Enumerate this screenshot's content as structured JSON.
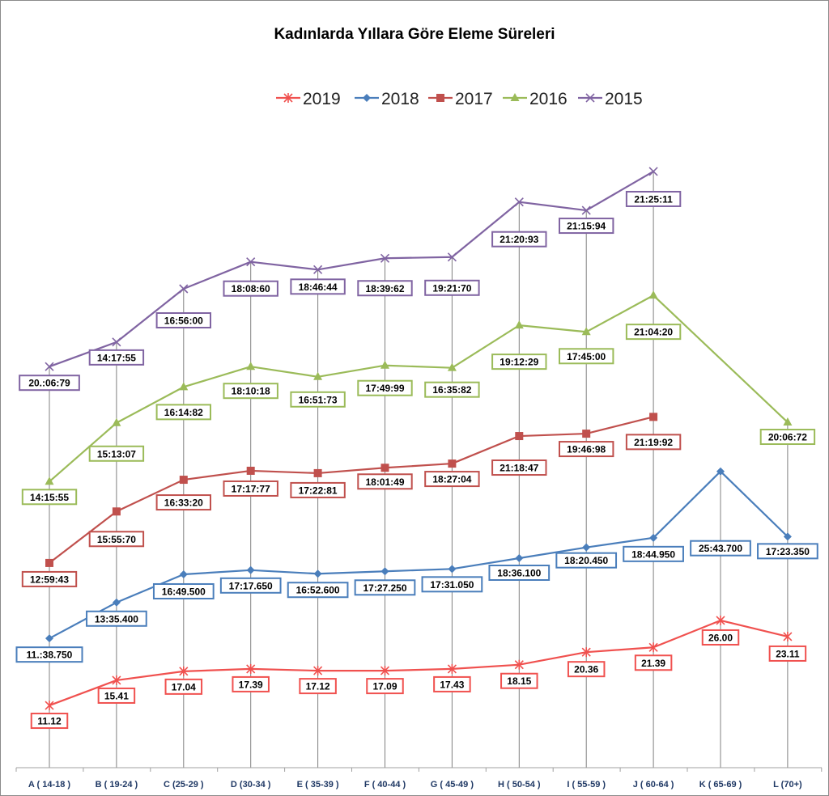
{
  "chart_data": {
    "type": "line",
    "title": "Kadınlarda Yıllara Göre Eleme Süreleri",
    "xlabel": "",
    "ylabel": "",
    "ylim": [
      0,
      100
    ],
    "grid": false,
    "legend_position": "top-center",
    "categories": [
      "A ( 14-18 )",
      "B ( 19-24 )",
      "C (25-29 )",
      "D (30-34 )",
      "E ( 35-39 )",
      "F ( 40-44 )",
      "G ( 45-49 )",
      "H ( 50-54 )",
      "I ( 55-59 )",
      "J ( 60-64 )",
      "K ( 65-69 )",
      "L (70+)"
    ],
    "series": [
      {
        "name": "2019",
        "color": "#f0514f",
        "marker": "asterisk",
        "values": [
          10.4,
          14.6,
          16.1,
          16.5,
          16.2,
          16.2,
          16.5,
          17.2,
          19.3,
          20.1,
          24.6,
          21.9
        ],
        "labels": [
          "11.12",
          "15.41",
          "17.04",
          "17.39",
          "17.12",
          "17.09",
          "17.43",
          "18.15",
          "20.36",
          "21.39",
          "26.00",
          "23.11"
        ]
      },
      {
        "name": "2018",
        "color": "#4a7ebb",
        "marker": "diamond",
        "values": [
          21.6,
          27.6,
          32.3,
          33.0,
          32.4,
          32.8,
          33.2,
          35.0,
          36.8,
          38.4,
          49.5,
          38.6
        ],
        "labels": [
          "11.:38.750",
          "13:35.400",
          "16:49.500",
          "17:17.650",
          "16:52.600",
          "17:27.250",
          "17:31.050",
          "18:36.100",
          "18:20.450",
          "18:44.950",
          "25:43.700",
          "17:23.350"
        ]
      },
      {
        "name": "2017",
        "color": "#c0504d",
        "marker": "square",
        "values": [
          34.2,
          42.8,
          48.1,
          49.6,
          49.2,
          50.1,
          50.8,
          55.4,
          55.8,
          58.6,
          null,
          null
        ],
        "labels": [
          "12:59:43",
          "15:55:70",
          "16:33:20",
          "17:17:77",
          "17:22:81",
          "18:01:49",
          "18:27:04",
          "21:18:47",
          "19:46:98",
          "21:19:92",
          null,
          null
        ]
      },
      {
        "name": "2016",
        "color": "#9bbb59",
        "marker": "triangle",
        "values": [
          47.8,
          57.6,
          63.6,
          67.0,
          65.3,
          67.2,
          66.8,
          73.9,
          72.8,
          78.9,
          null,
          57.7
        ],
        "labels": [
          "14:15:55",
          "15:13:07",
          "16:14:82",
          "18:10:18",
          "16:51:73",
          "17:49:99",
          "16:35:82",
          "19:12:29",
          "17:45:00",
          "21:04:20",
          null,
          "20:06:72"
        ]
      },
      {
        "name": "2015",
        "color": "#8064a2",
        "marker": "x",
        "values": [
          67.0,
          71.1,
          80.0,
          84.5,
          83.2,
          85.1,
          85.3,
          94.5,
          93.1,
          99.6,
          null,
          null
        ],
        "labels": [
          "20.:06:79",
          "14:17:55",
          "16:56:00",
          "18:08:60",
          "18:46:44",
          "18:39:62",
          "19:21:70",
          "21:20:93",
          "21:15:94",
          "21:25:11",
          null,
          null
        ]
      }
    ]
  }
}
